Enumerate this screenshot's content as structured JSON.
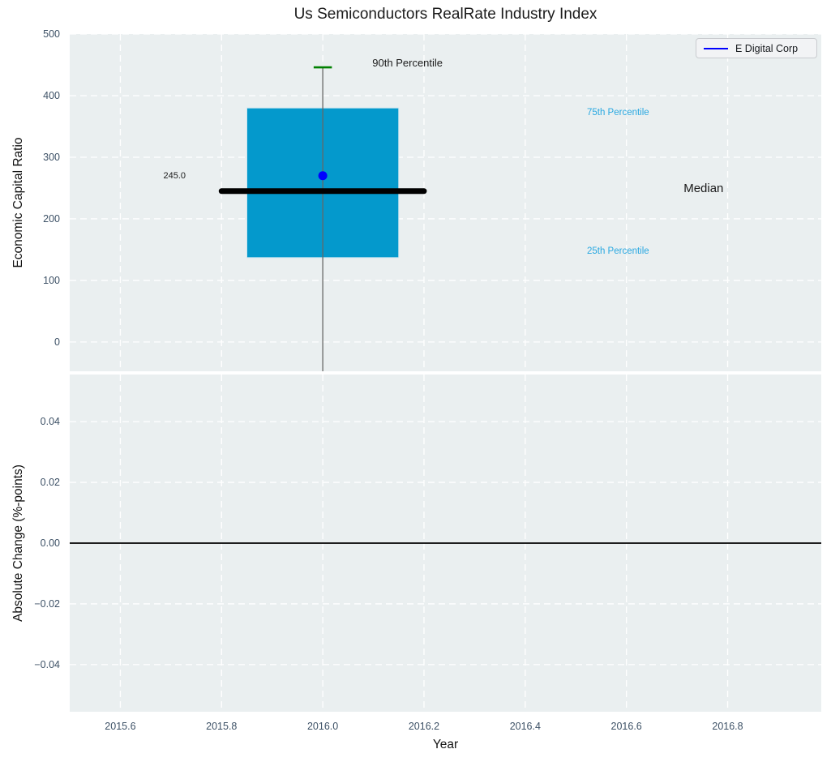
{
  "colors": {
    "figure_background": "#ffffff",
    "plot_background": "#eaeff0",
    "grid": "#ffffff",
    "box_fill": "#0499cc",
    "box_edge": "#cfe7f0",
    "median_line": "#000000",
    "whisker": "#666666",
    "percentile_90_cap": "#008000",
    "company_point": "#0000ff",
    "tick_label": "#3d5166",
    "zero_line": "#000000",
    "percentile_label_blue": "#29a8e1",
    "text": "#1a1a1a"
  },
  "chart_data": {
    "type": "box",
    "title": "Us Semiconductors RealRate Industry Index",
    "legend": {
      "label": "E Digital Corp",
      "line_color": "#0000ff",
      "position": "top-right"
    },
    "x_axis": {
      "label": "Year",
      "lim": [
        2015.5,
        2016.985
      ],
      "ticks": [
        2015.6,
        2015.8,
        2016.0,
        2016.2,
        2016.4,
        2016.6,
        2016.8
      ],
      "tick_labels": [
        "2015.6",
        "2015.8",
        "2016.0",
        "2016.2",
        "2016.4",
        "2016.6",
        "2016.8"
      ]
    },
    "subplot_top": {
      "ylabel": "Economic Capital Ratio",
      "ylim": [
        -47.5,
        500
      ],
      "yticks": [
        500,
        400,
        300,
        200,
        100,
        0
      ],
      "ytick_labels": [
        "500",
        "400",
        "300",
        "200",
        "100",
        "0"
      ],
      "grid": true,
      "box": {
        "x_center": 2016.0,
        "x_left": 2015.85,
        "x_right": 2016.15,
        "q1": 137,
        "q3": 380,
        "median": 245,
        "median_line_x_left": 2015.8,
        "median_line_x_right": 2016.2,
        "p90": 446,
        "whisker_low_clipped_at": -47.5,
        "cap_half_width": 0.018
      },
      "company_point": {
        "name": "E Digital Corp",
        "x": 2016.0,
        "y": 270
      },
      "annotations": [
        {
          "text": "90th Percentile",
          "x": 2016.098,
          "y": 452,
          "color": "#1a1a1a",
          "size": 13
        },
        {
          "text": "245.0",
          "x": 2015.685,
          "y": 268,
          "color": "#1a1a1a",
          "size": 11
        },
        {
          "text": "75th Percentile",
          "x": 2016.522,
          "y": 371,
          "color": "#29a8e1",
          "size": 11.5
        },
        {
          "text": "Median",
          "x": 2016.713,
          "y": 248,
          "color": "#1a1a1a",
          "size": 15
        },
        {
          "text": "25th Percentile",
          "x": 2016.522,
          "y": 146,
          "color": "#29a8e1",
          "size": 11.5
        }
      ]
    },
    "subplot_bottom": {
      "ylabel": "Absolute Change (%-points)",
      "ylim": [
        -0.0555,
        0.0555
      ],
      "yticks": [
        0.04,
        0.02,
        0.0,
        -0.02,
        -0.04
      ],
      "ytick_labels": [
        "0.04",
        "0.02",
        "0.00",
        "−0.02",
        "−0.04"
      ],
      "zero_line_y": 0.0,
      "grid": true
    }
  }
}
